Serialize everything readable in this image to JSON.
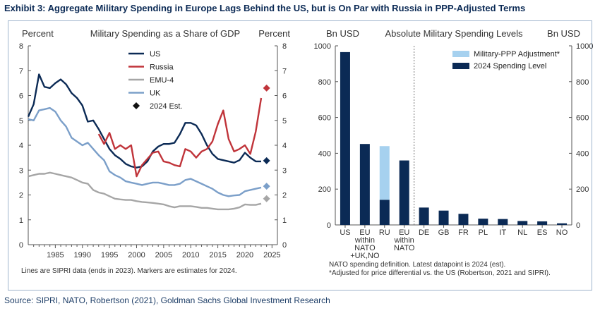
{
  "exhibit_title": "Exhibit 3: Aggregate Military Spending in Europe Lags Behind the US, but is On Par with Russia in PPP-Adjusted Terms",
  "source": "Source: SIPRI, NATO, Robertson (2021), Goldman Sachs Global Investment Research",
  "colors": {
    "US": "#0b2a55",
    "Russia": "#c0343a",
    "EMU-4": "#a6a6a6",
    "UK": "#7b9fc9",
    "ppp": "#a6d1ef",
    "bar": "#0b2a55"
  },
  "chart_data": [
    {
      "type": "line",
      "title": "Military Spending as a Share of GDP",
      "ylabel_left": "Percent",
      "ylabel_right": "Percent",
      "xlabel": "",
      "xlim": [
        1980,
        2026
      ],
      "ylim": [
        0,
        8
      ],
      "xticks": [
        "1985",
        "1990",
        "1995",
        "2000",
        "2005",
        "2010",
        "2015",
        "2020",
        "2025"
      ],
      "yticks": [
        "0",
        "1",
        "2",
        "3",
        "4",
        "5",
        "6",
        "7",
        "8"
      ],
      "grid": false,
      "legend": "top-center",
      "note": "Lines are SIPRI data (ends in 2023). Markers are estimates for 2024.",
      "estimate_label": "2024 Est.",
      "series": [
        {
          "name": "US",
          "x": [
            1980,
            1981,
            1982,
            1983,
            1984,
            1985,
            1986,
            1987,
            1988,
            1989,
            1990,
            1991,
            1992,
            1993,
            1994,
            1995,
            1996,
            1997,
            1998,
            1999,
            2000,
            2001,
            2002,
            2003,
            2004,
            2005,
            2006,
            2007,
            2008,
            2009,
            2010,
            2011,
            2012,
            2013,
            2014,
            2015,
            2016,
            2017,
            2018,
            2019,
            2020,
            2021,
            2022,
            2023
          ],
          "y": [
            5.15,
            5.65,
            6.85,
            6.35,
            6.3,
            6.5,
            6.65,
            6.45,
            6.1,
            5.9,
            5.6,
            4.95,
            5.0,
            4.65,
            4.25,
            3.85,
            3.6,
            3.45,
            3.25,
            3.15,
            3.1,
            3.15,
            3.35,
            3.75,
            3.95,
            4.05,
            4.05,
            4.1,
            4.45,
            4.9,
            4.9,
            4.8,
            4.45,
            4.0,
            3.65,
            3.45,
            3.4,
            3.35,
            3.3,
            3.4,
            3.7,
            3.5,
            3.35,
            3.35
          ],
          "estimate_2024": 3.38
        },
        {
          "name": "Russia",
          "x": [
            1993,
            1994,
            1995,
            1996,
            1997,
            1998,
            1999,
            2000,
            2001,
            2002,
            2003,
            2004,
            2005,
            2006,
            2007,
            2008,
            2009,
            2010,
            2011,
            2012,
            2013,
            2014,
            2015,
            2016,
            2017,
            2018,
            2019,
            2020,
            2021,
            2022,
            2023
          ],
          "y": [
            4.45,
            4.05,
            4.5,
            3.85,
            4.0,
            3.85,
            4.0,
            2.75,
            3.2,
            3.45,
            3.7,
            3.75,
            3.35,
            3.3,
            3.2,
            3.15,
            3.85,
            3.75,
            3.5,
            3.75,
            3.85,
            4.15,
            4.85,
            5.4,
            4.25,
            3.75,
            3.85,
            4.0,
            3.65,
            4.55,
            5.9
          ],
          "estimate_2024": 6.3
        },
        {
          "name": "EMU-4",
          "x": [
            1980,
            1981,
            1982,
            1983,
            1984,
            1985,
            1986,
            1987,
            1988,
            1989,
            1990,
            1991,
            1992,
            1993,
            1994,
            1995,
            1996,
            1997,
            1998,
            1999,
            2000,
            2001,
            2002,
            2003,
            2004,
            2005,
            2006,
            2007,
            2008,
            2009,
            2010,
            2011,
            2012,
            2013,
            2014,
            2015,
            2016,
            2017,
            2018,
            2019,
            2020,
            2021,
            2022,
            2023
          ],
          "y": [
            2.75,
            2.8,
            2.85,
            2.85,
            2.9,
            2.85,
            2.8,
            2.75,
            2.7,
            2.6,
            2.5,
            2.45,
            2.2,
            2.1,
            2.05,
            1.95,
            1.85,
            1.82,
            1.8,
            1.8,
            1.75,
            1.72,
            1.7,
            1.68,
            1.65,
            1.62,
            1.55,
            1.5,
            1.55,
            1.55,
            1.55,
            1.52,
            1.48,
            1.48,
            1.45,
            1.42,
            1.42,
            1.42,
            1.45,
            1.5,
            1.62,
            1.6,
            1.6,
            1.65
          ],
          "estimate_2024": 1.85
        },
        {
          "name": "UK",
          "x": [
            1980,
            1981,
            1982,
            1983,
            1984,
            1985,
            1986,
            1987,
            1988,
            1989,
            1990,
            1991,
            1992,
            1993,
            1994,
            1995,
            1996,
            1997,
            1998,
            1999,
            2000,
            2001,
            2002,
            2003,
            2004,
            2005,
            2006,
            2007,
            2008,
            2009,
            2010,
            2011,
            2012,
            2013,
            2014,
            2015,
            2016,
            2017,
            2018,
            2019,
            2020,
            2021,
            2022,
            2023
          ],
          "y": [
            5.05,
            5.0,
            5.4,
            5.45,
            5.5,
            5.35,
            5.0,
            4.75,
            4.3,
            4.15,
            4.0,
            4.1,
            3.85,
            3.6,
            3.4,
            2.95,
            2.8,
            2.7,
            2.55,
            2.5,
            2.45,
            2.4,
            2.45,
            2.5,
            2.5,
            2.45,
            2.4,
            2.4,
            2.45,
            2.6,
            2.65,
            2.55,
            2.45,
            2.35,
            2.25,
            2.1,
            2.0,
            1.95,
            1.98,
            2.0,
            2.15,
            2.2,
            2.25,
            2.3
          ],
          "estimate_2024": 2.35
        }
      ]
    },
    {
      "type": "bar",
      "title": "Absolute Military Spending Levels",
      "ylabel_left": "Bn USD",
      "ylabel_right": "Bn USD",
      "ylim": [
        0,
        1000
      ],
      "yticks": [
        "0",
        "200",
        "400",
        "600",
        "800",
        "1000"
      ],
      "grid": false,
      "legend": "top-right",
      "categories": [
        "US",
        "EU\nwithin\nNATO\n+UK,NO",
        "RU",
        "EU\nwithin\nNATO",
        "DE",
        "GB",
        "FR",
        "PL",
        "IT",
        "NL",
        "ES",
        "NO"
      ],
      "series": [
        {
          "name": "2024 Spending Level",
          "values": [
            965,
            452,
            140,
            360,
            97,
            80,
            62,
            35,
            33,
            22,
            20,
            9
          ]
        },
        {
          "name": "Military-PPP Adjustment*",
          "values": [
            0,
            0,
            300,
            0,
            0,
            0,
            0,
            0,
            0,
            0,
            0,
            0
          ]
        }
      ],
      "notes": [
        "NATO spending definition. Latest datapoint is 2024 (est).",
        "*Adjusted for price differential vs. the US (Robertson, 2021 and SIPRI)."
      ]
    }
  ]
}
